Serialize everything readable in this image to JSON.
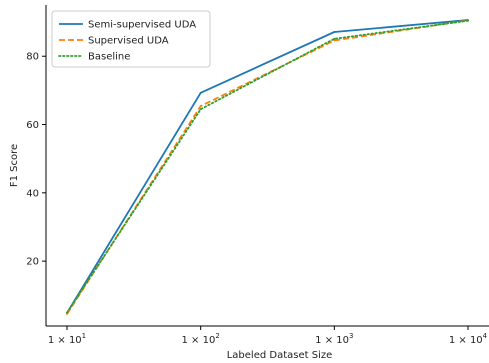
{
  "chart_data": {
    "type": "line",
    "xlabel": "Labeled Dataset Size",
    "ylabel": "F1 Score",
    "xscale": "log",
    "x": [
      10,
      100,
      1000,
      10000
    ],
    "x_tick_labels": [
      {
        "base": "1 × 10",
        "exp": "1"
      },
      {
        "base": "1 × 10",
        "exp": "2"
      },
      {
        "base": "1 × 10",
        "exp": "3"
      },
      {
        "base": "1 × 10",
        "exp": "4"
      }
    ],
    "y_ticks": [
      20,
      40,
      60,
      80
    ],
    "y_tick_labels": [
      "20",
      "40",
      "60",
      "80"
    ],
    "ylim": [
      1,
      95
    ],
    "grid": false,
    "legend_position": "top-left",
    "series": [
      {
        "name": "Semi-supervised UDA",
        "values": [
          4.8,
          69.3,
          87.1,
          90.6
        ],
        "color": "#1f77b4",
        "style": "solid"
      },
      {
        "name": "Supervised UDA",
        "values": [
          4.5,
          65.4,
          84.6,
          90.5
        ],
        "color": "#ff7f0e",
        "style": "dashed"
      },
      {
        "name": "Baseline",
        "values": [
          4.9,
          64.5,
          85.1,
          90.4
        ],
        "color": "#2ca02c",
        "style": "dotted"
      }
    ]
  }
}
